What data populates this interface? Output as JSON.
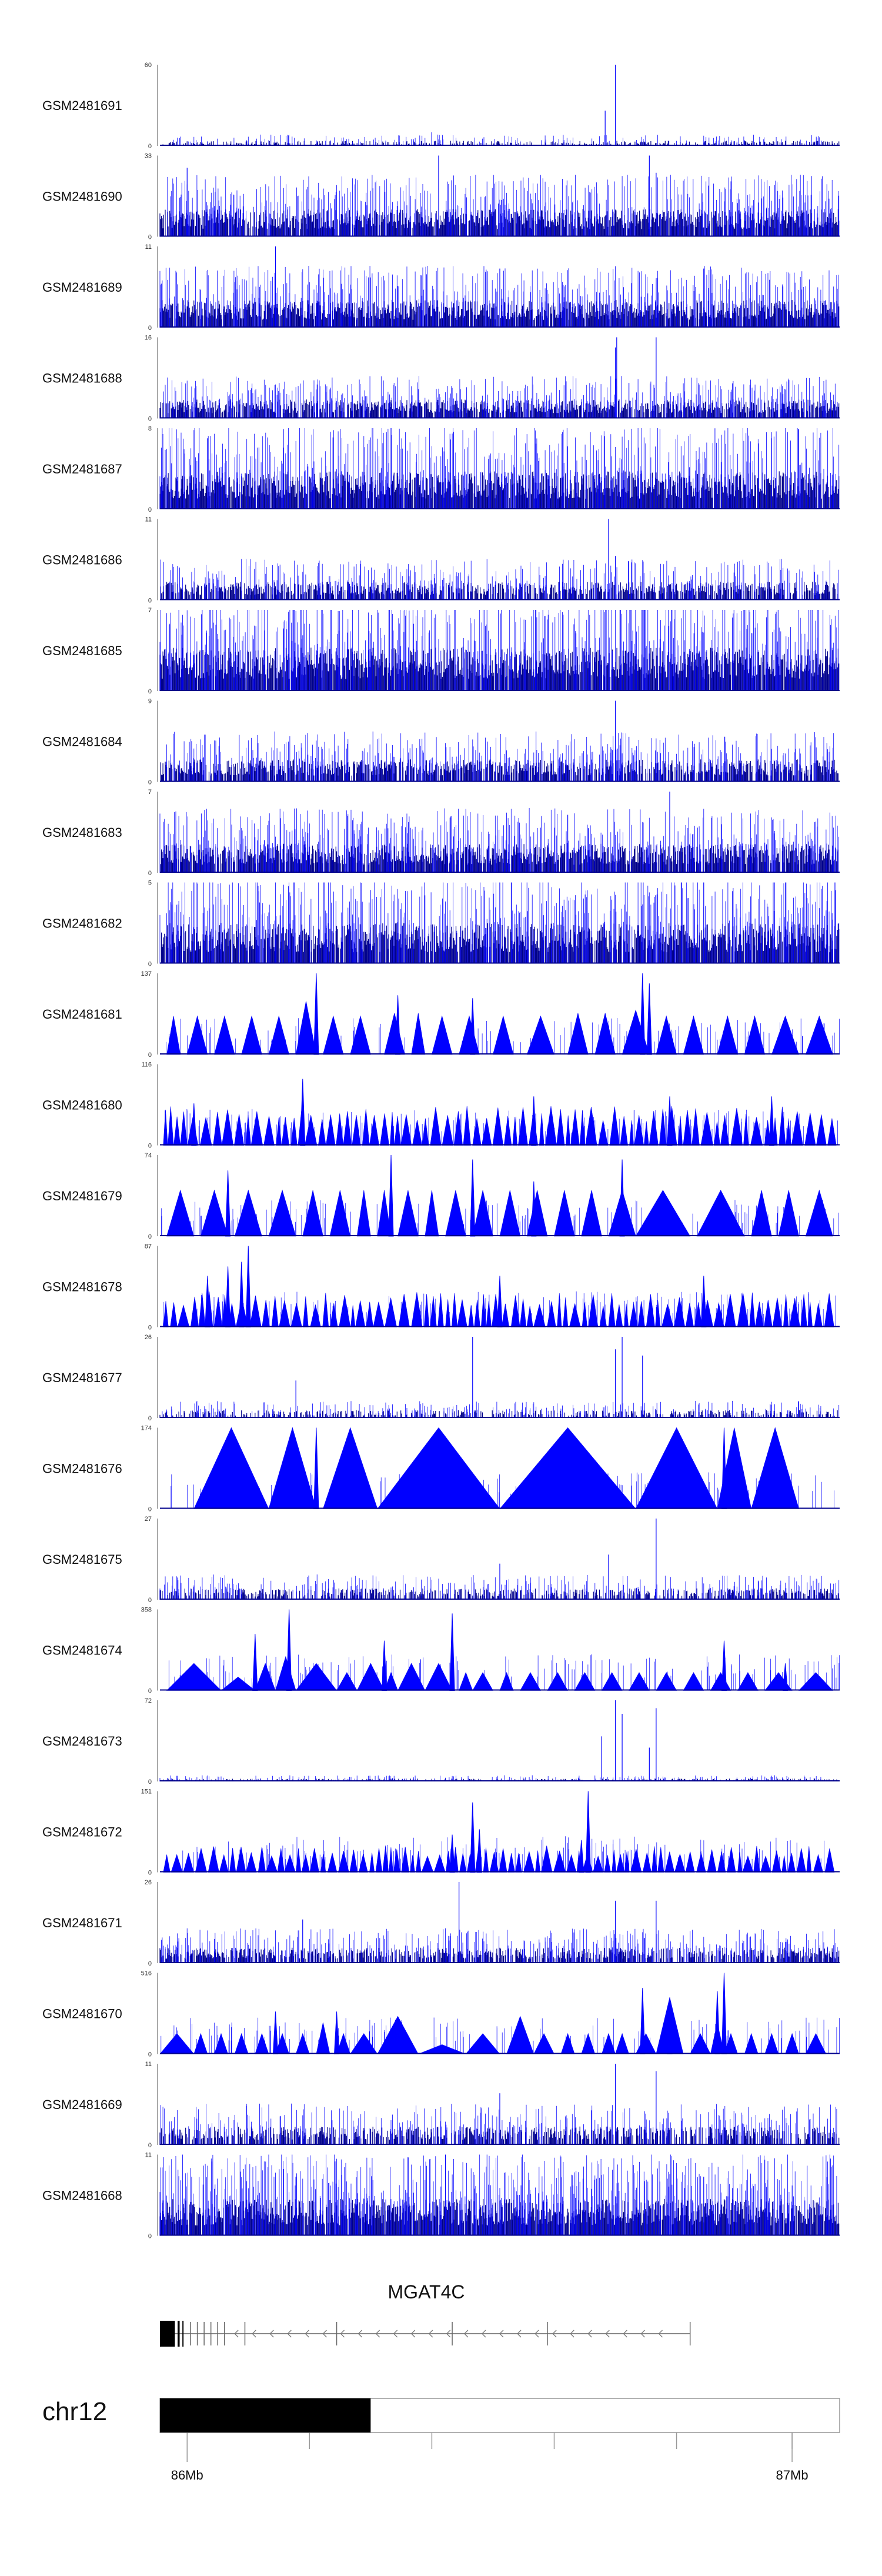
{
  "chart_data": {
    "type": "genome_browser_coverage",
    "series_color": "#0000ff",
    "baseline_color": "#00008b",
    "tracks": [
      {
        "name": "GSM2481691",
        "ymax": 60,
        "ymin": 0,
        "style": "bars",
        "base": 3,
        "density": 0.35,
        "peaks": [
          [
            0.67,
            60
          ],
          [
            0.655,
            26
          ],
          [
            0.4,
            10
          ]
        ]
      },
      {
        "name": "GSM2481690",
        "ymax": 33,
        "ymin": 0,
        "style": "bars",
        "base": 9,
        "density": 0.9,
        "peaks": [
          [
            0.04,
            28
          ],
          [
            0.41,
            33
          ],
          [
            0.72,
            33
          ],
          [
            0.73,
            26
          ]
        ]
      },
      {
        "name": "GSM2481689",
        "ymax": 11,
        "ymin": 0,
        "style": "bars",
        "base": 3,
        "density": 0.9,
        "peaks": [
          [
            0.17,
            11
          ],
          [
            0.5,
            8
          ],
          [
            0.8,
            8
          ]
        ]
      },
      {
        "name": "GSM2481688",
        "ymax": 16,
        "ymin": 0,
        "style": "bars",
        "base": 3,
        "density": 0.8,
        "peaks": [
          [
            0.67,
            14
          ],
          [
            0.672,
            16
          ],
          [
            0.73,
            16
          ],
          [
            0.69,
            7
          ]
        ]
      },
      {
        "name": "GSM2481687",
        "ymax": 8,
        "ymin": 0,
        "style": "bars",
        "base": 3,
        "density": 0.95,
        "peaks": [
          [
            0.34,
            8
          ],
          [
            0.07,
            7
          ],
          [
            0.9,
            7
          ]
        ]
      },
      {
        "name": "GSM2481686",
        "ymax": 11,
        "ymin": 0,
        "style": "bars",
        "base": 2,
        "density": 0.7,
        "peaks": [
          [
            0.66,
            11
          ],
          [
            0.67,
            6
          ],
          [
            0.7,
            5
          ]
        ]
      },
      {
        "name": "GSM2481685",
        "ymax": 7,
        "ymin": 0,
        "style": "bars",
        "base": 3,
        "density": 0.95,
        "peaks": [
          [
            0.4,
            7
          ],
          [
            0.7,
            7
          ]
        ]
      },
      {
        "name": "GSM2481684",
        "ymax": 9,
        "ymin": 0,
        "style": "bars",
        "base": 2,
        "density": 0.75,
        "peaks": [
          [
            0.67,
            9
          ],
          [
            0.69,
            5
          ]
        ]
      },
      {
        "name": "GSM2481683",
        "ymax": 7,
        "ymin": 0,
        "style": "bars",
        "base": 2,
        "density": 0.9,
        "peaks": [
          [
            0.75,
            7
          ],
          [
            0.6,
            5
          ]
        ]
      },
      {
        "name": "GSM2481682",
        "ymax": 5,
        "ymin": 0,
        "style": "bars",
        "base": 2,
        "density": 0.9,
        "peaks": [
          [
            0.05,
            5
          ],
          [
            0.5,
            5
          ],
          [
            0.8,
            5
          ]
        ]
      },
      {
        "name": "GSM2481681",
        "ymax": 137,
        "ymin": 0,
        "style": "triangles",
        "seed": 11,
        "tri": [
          [
            0.01,
            0.03,
            65
          ],
          [
            0.04,
            0.07,
            65
          ],
          [
            0.08,
            0.11,
            65
          ],
          [
            0.12,
            0.15,
            65
          ],
          [
            0.16,
            0.19,
            65
          ],
          [
            0.2,
            0.23,
            90
          ],
          [
            0.24,
            0.27,
            65
          ],
          [
            0.28,
            0.31,
            65
          ],
          [
            0.33,
            0.36,
            70
          ],
          [
            0.37,
            0.39,
            70
          ],
          [
            0.4,
            0.43,
            65
          ],
          [
            0.44,
            0.47,
            65
          ],
          [
            0.49,
            0.52,
            65
          ],
          [
            0.54,
            0.58,
            65
          ],
          [
            0.6,
            0.63,
            70
          ],
          [
            0.64,
            0.67,
            70
          ],
          [
            0.68,
            0.72,
            75
          ],
          [
            0.73,
            0.76,
            65
          ],
          [
            0.77,
            0.8,
            65
          ],
          [
            0.82,
            0.85,
            65
          ],
          [
            0.86,
            0.89,
            65
          ],
          [
            0.9,
            0.94,
            65
          ],
          [
            0.95,
            0.99,
            65
          ]
        ],
        "spikes": [
          [
            0.23,
            137
          ],
          [
            0.35,
            100
          ],
          [
            0.46,
            95
          ],
          [
            0.71,
            137
          ],
          [
            0.72,
            120
          ]
        ]
      },
      {
        "name": "GSM2481680",
        "ymax": 116,
        "ymin": 0,
        "style": "triangles",
        "seed": 12,
        "dense": true,
        "height": 45,
        "spikes": [
          [
            0.21,
            95
          ],
          [
            0.05,
            60
          ],
          [
            0.55,
            70
          ],
          [
            0.75,
            70
          ],
          [
            0.9,
            70
          ]
        ]
      },
      {
        "name": "GSM2481679",
        "ymax": 74,
        "ymin": 0,
        "style": "triangles",
        "seed": 13,
        "tri": [
          [
            0.01,
            0.05,
            42
          ],
          [
            0.06,
            0.1,
            42
          ],
          [
            0.11,
            0.15,
            42
          ],
          [
            0.16,
            0.2,
            42
          ],
          [
            0.21,
            0.24,
            42
          ],
          [
            0.25,
            0.28,
            42
          ],
          [
            0.29,
            0.31,
            42
          ],
          [
            0.32,
            0.34,
            42
          ],
          [
            0.35,
            0.38,
            42
          ],
          [
            0.39,
            0.41,
            42
          ],
          [
            0.42,
            0.45,
            42
          ],
          [
            0.46,
            0.49,
            42
          ],
          [
            0.5,
            0.53,
            42
          ],
          [
            0.54,
            0.57,
            42
          ],
          [
            0.58,
            0.61,
            42
          ],
          [
            0.62,
            0.65,
            42
          ],
          [
            0.66,
            0.7,
            42
          ],
          [
            0.7,
            0.78,
            42
          ],
          [
            0.79,
            0.86,
            42
          ],
          [
            0.87,
            0.9,
            42
          ],
          [
            0.91,
            0.94,
            42
          ],
          [
            0.95,
            0.99,
            42
          ]
        ],
        "spikes": [
          [
            0.1,
            60
          ],
          [
            0.34,
            74
          ],
          [
            0.46,
            70
          ],
          [
            0.68,
            70
          ],
          [
            0.55,
            50
          ]
        ]
      },
      {
        "name": "GSM2481678",
        "ymax": 87,
        "ymin": 0,
        "style": "triangles",
        "seed": 14,
        "dense": true,
        "height": 30,
        "spikes": [
          [
            0.13,
            87
          ],
          [
            0.12,
            70
          ],
          [
            0.1,
            65
          ],
          [
            0.07,
            55
          ],
          [
            0.5,
            55
          ],
          [
            0.8,
            55
          ]
        ]
      },
      {
        "name": "GSM2481677",
        "ymax": 26,
        "ymin": 0,
        "style": "bars",
        "base": 2,
        "density": 0.4,
        "peaks": [
          [
            0.46,
            26
          ],
          [
            0.68,
            26
          ],
          [
            0.67,
            22
          ],
          [
            0.71,
            20
          ],
          [
            0.2,
            12
          ]
        ]
      },
      {
        "name": "GSM2481676",
        "ymax": 174,
        "ymin": 0,
        "style": "triangles",
        "seed": 16,
        "tri": [
          [
            0.05,
            0.16,
            174
          ],
          [
            0.16,
            0.23,
            174
          ],
          [
            0.24,
            0.32,
            174
          ],
          [
            0.32,
            0.5,
            174
          ],
          [
            0.5,
            0.7,
            174
          ],
          [
            0.7,
            0.82,
            174
          ],
          [
            0.82,
            0.87,
            174
          ],
          [
            0.87,
            0.94,
            174
          ]
        ],
        "spikes": [
          [
            0.23,
            174
          ],
          [
            0.83,
            174
          ]
        ]
      },
      {
        "name": "GSM2481675",
        "ymax": 27,
        "ymin": 0,
        "style": "bars",
        "base": 3,
        "density": 0.5,
        "peaks": [
          [
            0.73,
            27
          ],
          [
            0.66,
            15
          ],
          [
            0.5,
            12
          ]
        ]
      },
      {
        "name": "GSM2481674",
        "ymax": 358,
        "ymin": 0,
        "style": "triangles",
        "seed": 18,
        "tri": [
          [
            0.01,
            0.09,
            120
          ],
          [
            0.09,
            0.14,
            60
          ],
          [
            0.14,
            0.17,
            120
          ],
          [
            0.17,
            0.2,
            150
          ],
          [
            0.2,
            0.26,
            120
          ],
          [
            0.26,
            0.29,
            80
          ],
          [
            0.29,
            0.33,
            120
          ],
          [
            0.33,
            0.35,
            80
          ],
          [
            0.35,
            0.39,
            120
          ],
          [
            0.39,
            0.43,
            120
          ],
          [
            0.44,
            0.46,
            80
          ],
          [
            0.46,
            0.49,
            80
          ],
          [
            0.5,
            0.52,
            80
          ],
          [
            0.53,
            0.56,
            80
          ],
          [
            0.57,
            0.6,
            80
          ],
          [
            0.61,
            0.64,
            80
          ],
          [
            0.65,
            0.68,
            80
          ],
          [
            0.69,
            0.72,
            80
          ],
          [
            0.73,
            0.76,
            80
          ],
          [
            0.77,
            0.8,
            80
          ],
          [
            0.81,
            0.84,
            80
          ],
          [
            0.85,
            0.88,
            80
          ],
          [
            0.89,
            0.93,
            80
          ],
          [
            0.94,
            0.99,
            80
          ]
        ],
        "spikes": [
          [
            0.19,
            358
          ],
          [
            0.14,
            250
          ],
          [
            0.43,
            340
          ],
          [
            0.33,
            220
          ],
          [
            0.83,
            220
          ],
          [
            0.92,
            120
          ]
        ]
      },
      {
        "name": "GSM2481673",
        "ymax": 72,
        "ymin": 0,
        "style": "bars",
        "base": 2,
        "density": 0.35,
        "peaks": [
          [
            0.67,
            72
          ],
          [
            0.68,
            60
          ],
          [
            0.73,
            65
          ],
          [
            0.65,
            40
          ],
          [
            0.72,
            30
          ]
        ]
      },
      {
        "name": "GSM2481672",
        "ymax": 151,
        "ymin": 0,
        "style": "triangles",
        "seed": 20,
        "dense": true,
        "height": 40,
        "spikes": [
          [
            0.63,
            151
          ],
          [
            0.46,
            130
          ],
          [
            0.47,
            80
          ],
          [
            0.43,
            70
          ],
          [
            0.62,
            60
          ]
        ]
      },
      {
        "name": "GSM2481671",
        "ymax": 26,
        "ymin": 0,
        "style": "bars",
        "base": 4,
        "density": 0.65,
        "peaks": [
          [
            0.44,
            26
          ],
          [
            0.67,
            20
          ],
          [
            0.73,
            20
          ],
          [
            0.21,
            14
          ]
        ]
      },
      {
        "name": "GSM2481670",
        "ymax": 516,
        "ymin": 0,
        "style": "triangles",
        "seed": 22,
        "tri": [
          [
            0.0,
            0.05,
            130
          ],
          [
            0.05,
            0.07,
            130
          ],
          [
            0.08,
            0.1,
            130
          ],
          [
            0.11,
            0.13,
            130
          ],
          [
            0.14,
            0.16,
            130
          ],
          [
            0.17,
            0.19,
            130
          ],
          [
            0.2,
            0.22,
            130
          ],
          [
            0.23,
            0.25,
            200
          ],
          [
            0.26,
            0.28,
            130
          ],
          [
            0.28,
            0.32,
            130
          ],
          [
            0.32,
            0.38,
            240
          ],
          [
            0.38,
            0.45,
            60
          ],
          [
            0.45,
            0.5,
            130
          ],
          [
            0.51,
            0.55,
            240
          ],
          [
            0.55,
            0.58,
            130
          ],
          [
            0.59,
            0.61,
            130
          ],
          [
            0.62,
            0.64,
            130
          ],
          [
            0.65,
            0.67,
            130
          ],
          [
            0.67,
            0.69,
            130
          ],
          [
            0.7,
            0.73,
            130
          ],
          [
            0.73,
            0.77,
            360
          ],
          [
            0.78,
            0.81,
            130
          ],
          [
            0.81,
            0.83,
            200
          ],
          [
            0.83,
            0.85,
            130
          ],
          [
            0.86,
            0.88,
            130
          ],
          [
            0.89,
            0.91,
            130
          ],
          [
            0.92,
            0.94,
            130
          ],
          [
            0.95,
            0.98,
            130
          ]
        ],
        "spikes": [
          [
            0.83,
            516
          ],
          [
            0.82,
            400
          ],
          [
            0.71,
            420
          ],
          [
            0.75,
            360
          ],
          [
            0.17,
            270
          ],
          [
            0.26,
            270
          ]
        ]
      },
      {
        "name": "GSM2481669",
        "ymax": 11,
        "ymin": 0,
        "style": "bars",
        "base": 2,
        "density": 0.6,
        "peaks": [
          [
            0.67,
            11
          ],
          [
            0.73,
            10
          ],
          [
            0.5,
            7
          ]
        ]
      },
      {
        "name": "GSM2481668",
        "ymax": 11,
        "ymin": 0,
        "style": "bars",
        "base": 4,
        "density": 0.95,
        "peaks": [
          [
            0.42,
            11
          ],
          [
            0.2,
            8
          ],
          [
            0.8,
            8
          ]
        ]
      }
    ],
    "gene": {
      "name": "MGAT4C",
      "strand": "-",
      "start": 0.0,
      "end": 0.78,
      "exons": [
        [
          0.0,
          0.022
        ],
        [
          0.026,
          0.029
        ],
        [
          0.033,
          0.034
        ]
      ],
      "introns_lines": [
        0.045,
        0.055,
        0.065,
        0.075,
        0.085,
        0.095,
        0.125,
        0.26,
        0.43,
        0.57,
        0.78
      ]
    },
    "ideogram": {
      "chromosome": "chr12",
      "filled_fraction": 0.31,
      "ticks": [
        0.04,
        0.22,
        0.4,
        0.58,
        0.76,
        0.93
      ]
    },
    "axis": {
      "labels": [
        {
          "pos": 0.04,
          "text": "86Mb"
        },
        {
          "pos": 0.93,
          "text": "87Mb"
        }
      ]
    }
  }
}
